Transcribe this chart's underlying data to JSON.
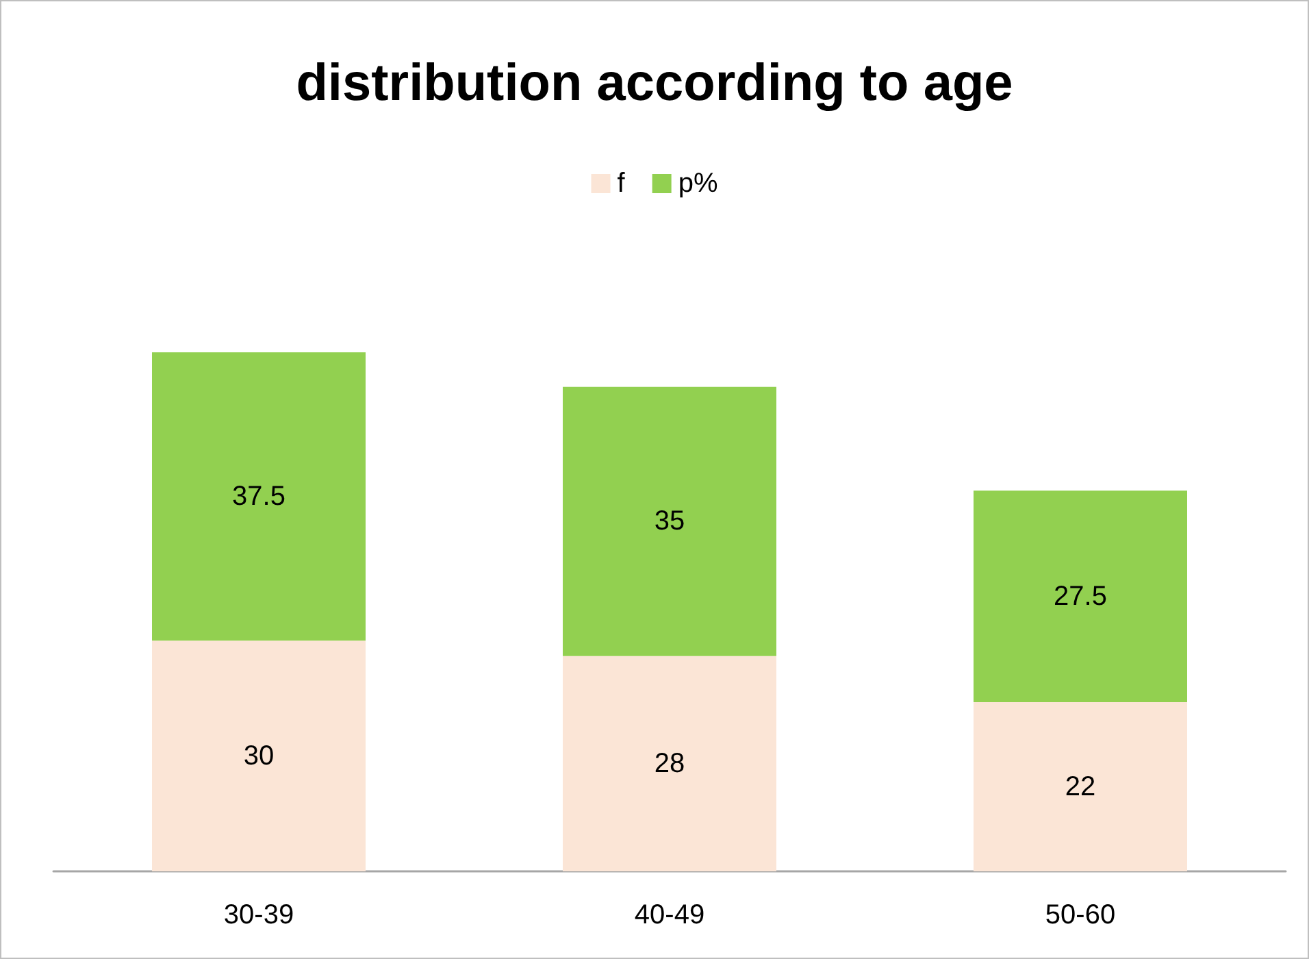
{
  "chart_data": {
    "type": "bar",
    "title": "distribution according to age",
    "categories": [
      "30-39",
      "40-49",
      "50-60"
    ],
    "stacked": true,
    "data_labels": true,
    "legend": "top",
    "series": [
      {
        "name": "f",
        "color": "#fbe5d6",
        "values": [
          30,
          28,
          22
        ]
      },
      {
        "name": "p%",
        "color": "#92d050",
        "values": [
          37.5,
          35,
          27.5
        ]
      }
    ]
  }
}
